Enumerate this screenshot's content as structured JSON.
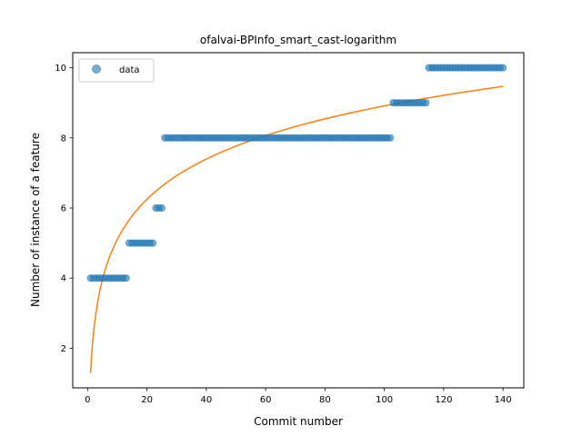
{
  "chart_data": {
    "type": "scatter",
    "title": "ofalvai-BPInfo_smart_cast-logarithm",
    "xlabel": "Commit number",
    "ylabel": "Number of instance of a feature",
    "xlim": [
      -5,
      147
    ],
    "ylim": [
      0.87,
      10.43
    ],
    "xticks": [
      0,
      20,
      40,
      60,
      80,
      100,
      120,
      140
    ],
    "yticks": [
      2,
      4,
      6,
      8,
      10
    ],
    "legend": {
      "entries": [
        "data"
      ],
      "placement": "top-left"
    },
    "colors": {
      "data": "#1f77b4",
      "fit": "#ff7f0e"
    },
    "series": [
      {
        "name": "data",
        "kind": "points",
        "segments": [
          {
            "x_from": 1,
            "x_to": 13,
            "y": 4
          },
          {
            "x_from": 14,
            "x_to": 22,
            "y": 5
          },
          {
            "x_from": 23,
            "x_to": 25,
            "y": 6
          },
          {
            "x_from": 26,
            "x_to": 102,
            "y": 8
          },
          {
            "x_from": 103,
            "x_to": 114,
            "y": 9
          },
          {
            "x_from": 115,
            "x_to": 140,
            "y": 10
          }
        ]
      },
      {
        "name": "logarithmic fit",
        "kind": "line",
        "model": "y = a + b * ln(x)",
        "a": 1.29,
        "b": 1.655,
        "x_from": 1,
        "x_to": 140
      }
    ]
  }
}
